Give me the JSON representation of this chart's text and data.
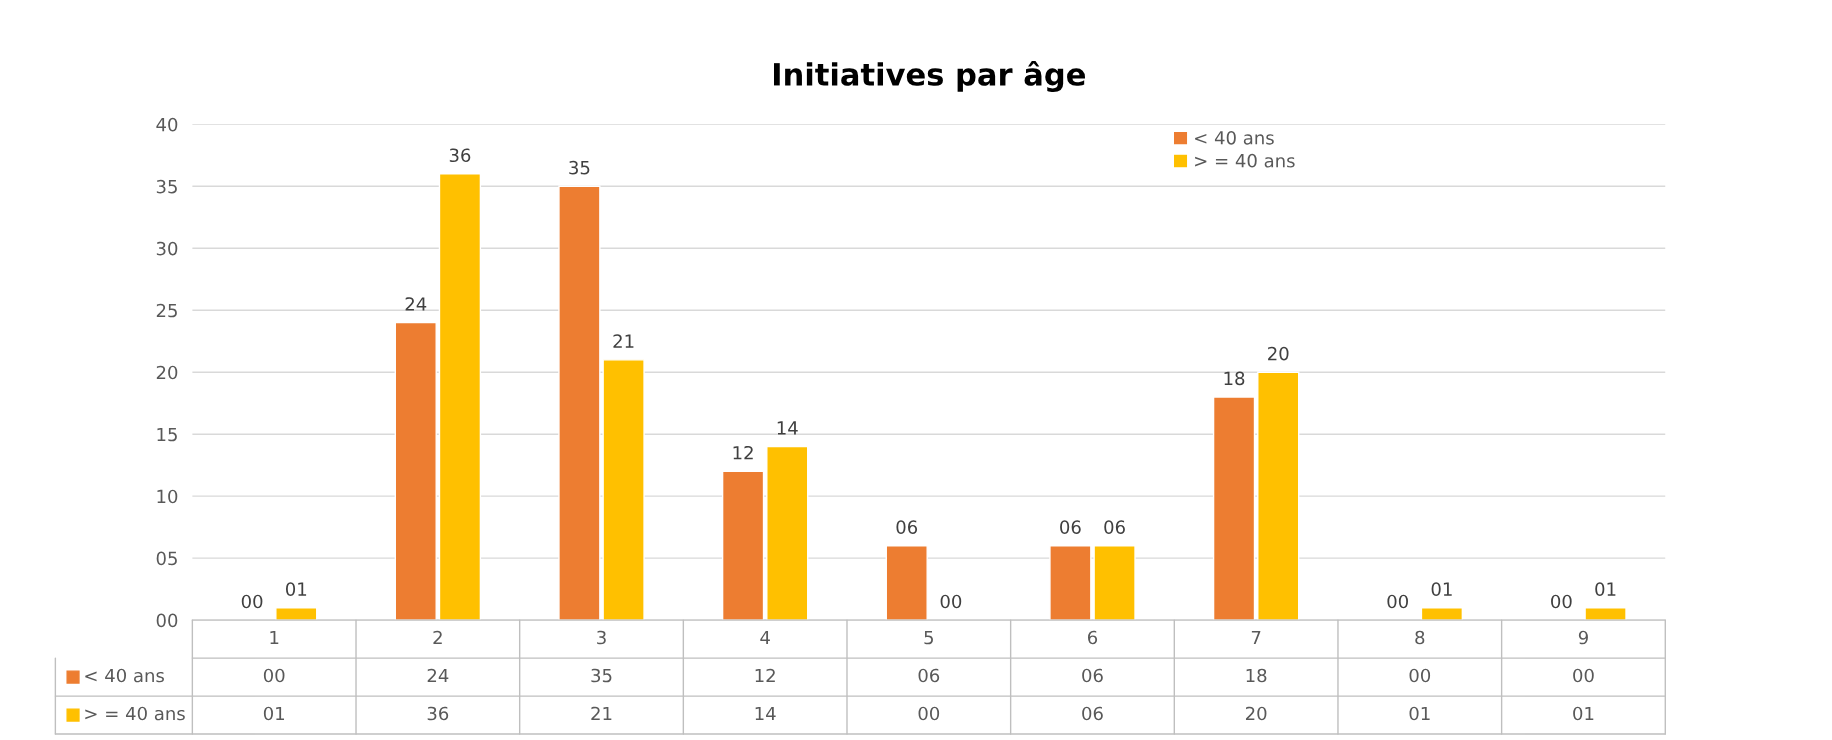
{
  "chart_data": {
    "type": "bar",
    "title": "Initiatives par âge",
    "categories": [
      "1",
      "2",
      "3",
      "4",
      "5",
      "6",
      "7",
      "8",
      "9"
    ],
    "series": [
      {
        "name": "< 40 ans",
        "color": "#ed7d31",
        "values": [
          0,
          24,
          35,
          12,
          6,
          6,
          18,
          0,
          0
        ],
        "value_labels": [
          "00",
          "24",
          "35",
          "12",
          "06",
          "06",
          "18",
          "00",
          "00"
        ]
      },
      {
        "name": "> = 40 ans",
        "color": "#ffc000",
        "values": [
          1,
          36,
          21,
          14,
          0,
          6,
          20,
          1,
          1
        ],
        "value_labels": [
          "01",
          "36",
          "21",
          "14",
          "00",
          "06",
          "20",
          "01",
          "01"
        ]
      }
    ],
    "ylim": [
      0,
      40
    ],
    "yticks": [
      {
        "value": 0,
        "label": "00"
      },
      {
        "value": 5,
        "label": "05"
      },
      10,
      15,
      20,
      25,
      30,
      35,
      40
    ],
    "grid": "y",
    "legend": "top right"
  }
}
